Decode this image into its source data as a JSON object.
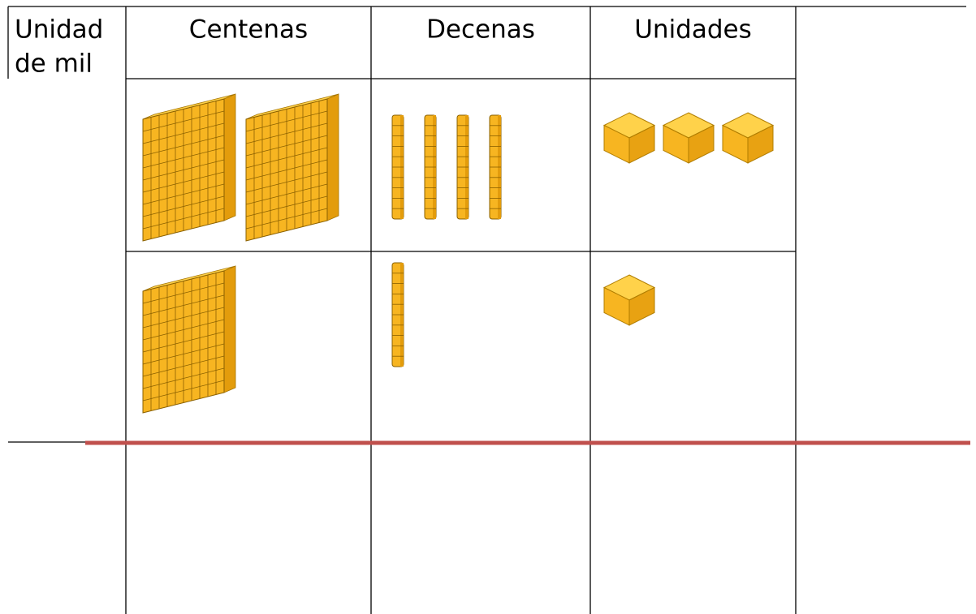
{
  "table": {
    "header": [
      [
        "Unidad",
        "de mil"
      ],
      [
        "Centenas"
      ],
      [
        "Decenas"
      ],
      [
        "Unidades"
      ]
    ],
    "rows": [
      {
        "centenas": 2,
        "decenas": 4,
        "unidades": 3
      },
      {
        "centenas": 1,
        "decenas": 1,
        "unidades": 1
      }
    ]
  }
}
